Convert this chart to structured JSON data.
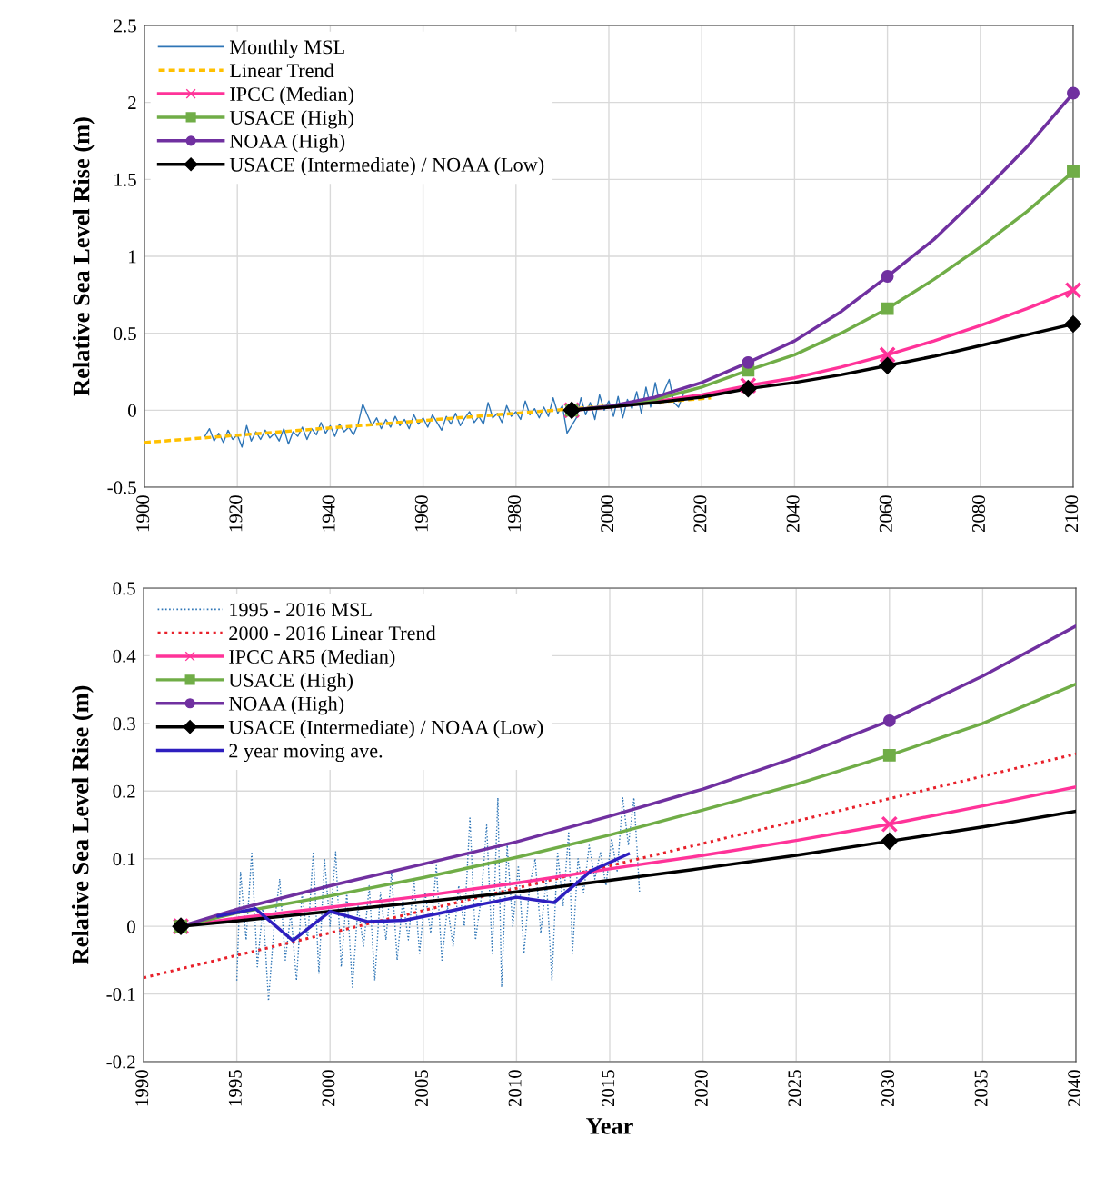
{
  "chart_data": [
    {
      "type": "line",
      "ylabel": "Relative Sea Level Rise (m)",
      "xlim": [
        1900,
        2100
      ],
      "xticks": [
        1900,
        1920,
        1940,
        1960,
        1980,
        2000,
        2020,
        2040,
        2060,
        2080,
        2100
      ],
      "ylim": [
        -0.5,
        2.5
      ],
      "yticks": [
        -0.5,
        0,
        0.5,
        1,
        1.5,
        2,
        2.5
      ],
      "grid": true,
      "legend": "top left",
      "series": [
        {
          "name": "Monthly MSL",
          "color": "#2e75b6",
          "line_style": "solid",
          "marker": "none",
          "x": [
            1913,
            1914,
            1915,
            1916,
            1917,
            1918,
            1919,
            1920,
            1921,
            1922,
            1923,
            1924,
            1925,
            1926,
            1927,
            1928,
            1929,
            1930,
            1931,
            1932,
            1933,
            1934,
            1935,
            1936,
            1937,
            1938,
            1939,
            1940,
            1941,
            1942,
            1943,
            1944,
            1945,
            1946,
            1947,
            1948,
            1949,
            1950,
            1951,
            1952,
            1953,
            1954,
            1955,
            1956,
            1957,
            1958,
            1959,
            1960,
            1961,
            1962,
            1963,
            1964,
            1965,
            1966,
            1967,
            1968,
            1969,
            1970,
            1971,
            1972,
            1973,
            1974,
            1975,
            1976,
            1977,
            1978,
            1979,
            1980,
            1981,
            1982,
            1983,
            1984,
            1985,
            1986,
            1987,
            1988,
            1989,
            1990,
            1991,
            1993,
            1994,
            1995,
            1996,
            1997,
            1998,
            1999,
            2000,
            2001,
            2002,
            2003,
            2004,
            2005,
            2006,
            2007,
            2008,
            2009,
            2010,
            2011,
            2012,
            2013,
            2014,
            2015,
            2016
          ],
          "values": [
            -0.17,
            -0.12,
            -0.2,
            -0.15,
            -0.21,
            -0.13,
            -0.19,
            -0.16,
            -0.24,
            -0.1,
            -0.2,
            -0.14,
            -0.19,
            -0.13,
            -0.18,
            -0.15,
            -0.2,
            -0.12,
            -0.22,
            -0.14,
            -0.17,
            -0.11,
            -0.19,
            -0.12,
            -0.16,
            -0.08,
            -0.15,
            -0.1,
            -0.17,
            -0.09,
            -0.14,
            -0.11,
            -0.16,
            -0.09,
            0.04,
            -0.03,
            -0.1,
            -0.05,
            -0.12,
            -0.06,
            -0.11,
            -0.04,
            -0.1,
            -0.06,
            -0.12,
            -0.03,
            -0.09,
            -0.05,
            -0.11,
            -0.03,
            -0.08,
            -0.13,
            -0.04,
            -0.09,
            -0.02,
            -0.1,
            -0.05,
            -0.01,
            -0.08,
            -0.04,
            -0.09,
            0.05,
            -0.05,
            -0.02,
            -0.08,
            0.03,
            -0.04,
            -0.01,
            -0.06,
            0.06,
            -0.03,
            0.01,
            -0.05,
            0.02,
            -0.04,
            0.08,
            -0.02,
            0.03,
            -0.15,
            -0.05,
            0.08,
            -0.03,
            0.05,
            -0.06,
            0.1,
            0.0,
            0.06,
            -0.04,
            0.09,
            -0.05,
            0.07,
            0.01,
            0.12,
            -0.02,
            0.15,
            0.02,
            0.18,
            0.04,
            0.13,
            0.2,
            0.05,
            0.02,
            0.1
          ]
        },
        {
          "name": "Linear Trend",
          "color": "#ffc000",
          "line_style": "dashed",
          "marker": "none",
          "x": [
            1900,
            2022
          ],
          "values": [
            -0.21,
            0.08
          ]
        },
        {
          "type": "line",
          "color": "#ff3399",
          "x": [
            1992,
            2000,
            2010,
            2020,
            2030,
            2040,
            2050,
            2060,
            2070,
            2080,
            2090,
            2100
          ],
          "values": [
            0,
            0.02,
            0.055,
            0.1,
            0.16,
            0.21,
            0.28,
            0.36,
            0.45,
            0.55,
            0.66,
            0.78
          ]
        },
        {
          "type": "scatter",
          "name": "IPCC (Median)",
          "color": "#ff3399",
          "line_style": "solid",
          "marker": "cross",
          "x": [
            1992,
            2030,
            2060,
            2100
          ],
          "values": [
            0,
            0.16,
            0.36,
            0.78
          ]
        },
        {
          "type": "line",
          "color": "#70ad47",
          "x": [
            1992,
            2000,
            2010,
            2020,
            2030,
            2040,
            2050,
            2060,
            2070,
            2080,
            2090,
            2100
          ],
          "values": [
            0,
            0.025,
            0.07,
            0.15,
            0.26,
            0.36,
            0.5,
            0.66,
            0.85,
            1.06,
            1.29,
            1.55
          ]
        },
        {
          "type": "scatter",
          "name": "USACE (High)",
          "color": "#70ad47",
          "line_style": "solid",
          "marker": "square",
          "x": [
            1992,
            2030,
            2060,
            2100
          ],
          "values": [
            0,
            0.26,
            0.66,
            1.55
          ]
        },
        {
          "type": "line",
          "color": "#7030a0",
          "x": [
            1992,
            2000,
            2010,
            2020,
            2030,
            2040,
            2050,
            2060,
            2070,
            2080,
            2090,
            2100
          ],
          "values": [
            0,
            0.025,
            0.085,
            0.18,
            0.31,
            0.45,
            0.64,
            0.87,
            1.11,
            1.4,
            1.71,
            2.06
          ]
        },
        {
          "type": "scatter",
          "name": "NOAA (High)",
          "color": "#7030a0",
          "line_style": "solid",
          "marker": "circle",
          "x": [
            1992,
            2030,
            2060,
            2100
          ],
          "values": [
            0,
            0.31,
            0.87,
            2.06
          ]
        },
        {
          "type": "line",
          "color": "#000000",
          "x": [
            1992,
            2000,
            2010,
            2020,
            2030,
            2040,
            2050,
            2060,
            2070,
            2080,
            2090,
            2100
          ],
          "values": [
            0,
            0.02,
            0.05,
            0.085,
            0.14,
            0.18,
            0.23,
            0.29,
            0.35,
            0.42,
            0.49,
            0.56
          ]
        },
        {
          "type": "scatter",
          "name": "USACE (Intermediate) / NOAA (Low)",
          "color": "#000000",
          "line_style": "solid",
          "marker": "diamond",
          "x": [
            1992,
            2030,
            2060,
            2100
          ],
          "values": [
            0,
            0.14,
            0.29,
            0.56
          ]
        }
      ]
    },
    {
      "type": "line",
      "xlabel": "Year",
      "ylabel": "Relative Sea Level Rise (m)",
      "xlim": [
        1990,
        2040
      ],
      "xticks": [
        1990,
        1995,
        2000,
        2005,
        2010,
        2015,
        2020,
        2025,
        2030,
        2035,
        2040
      ],
      "ylim": [
        -0.2,
        0.5
      ],
      "yticks": [
        -0.2,
        -0.1,
        0,
        0.1,
        0.2,
        0.3,
        0.4,
        0.5
      ],
      "grid": true,
      "legend": "top left",
      "series": [
        {
          "name": "1995 - 2016 MSL",
          "color": "#2e75b6",
          "line_style": "dotted",
          "marker": "none",
          "x": [
            1995.0,
            1995.2,
            1995.5,
            1995.8,
            1996.1,
            1996.4,
            1996.7,
            1997.0,
            1997.3,
            1997.6,
            1997.9,
            1998.2,
            1998.5,
            1998.8,
            1999.1,
            1999.4,
            1999.7,
            2000.0,
            2000.3,
            2000.6,
            2000.9,
            2001.2,
            2001.5,
            2001.8,
            2002.1,
            2002.4,
            2002.7,
            2003.0,
            2003.3,
            2003.6,
            2003.9,
            2004.2,
            2004.5,
            2004.8,
            2005.1,
            2005.4,
            2005.7,
            2006.0,
            2006.3,
            2006.6,
            2006.9,
            2007.2,
            2007.5,
            2007.8,
            2008.1,
            2008.4,
            2008.7,
            2009.0,
            2009.2,
            2009.5,
            2009.8,
            2010.1,
            2010.4,
            2010.7,
            2011.0,
            2011.3,
            2011.6,
            2011.9,
            2012.2,
            2012.5,
            2012.8,
            2013.0,
            2013.3,
            2013.6,
            2013.9,
            2014.2,
            2014.5,
            2014.8,
            2015.1,
            2015.4,
            2015.7,
            2016.0,
            2016.3,
            2016.6
          ],
          "values": [
            -0.08,
            0.08,
            -0.02,
            0.11,
            -0.06,
            0.03,
            -0.11,
            0.0,
            0.07,
            -0.05,
            0.02,
            -0.08,
            0.05,
            -0.02,
            0.11,
            -0.07,
            0.1,
            0.0,
            0.11,
            -0.06,
            0.05,
            -0.09,
            0.03,
            -0.03,
            0.06,
            -0.08,
            0.05,
            -0.02,
            0.08,
            -0.05,
            0.04,
            -0.02,
            0.07,
            -0.04,
            0.05,
            -0.01,
            0.09,
            -0.05,
            0.03,
            -0.03,
            0.06,
            0.0,
            0.16,
            -0.02,
            0.04,
            0.15,
            -0.04,
            0.19,
            -0.09,
            0.12,
            0.0,
            0.09,
            -0.04,
            0.06,
            0.1,
            -0.01,
            0.07,
            -0.08,
            0.11,
            0.03,
            0.14,
            -0.04,
            0.1,
            0.05,
            0.12,
            0.07,
            0.11,
            0.06,
            0.13,
            0.08,
            0.19,
            0.12,
            0.19,
            0.05
          ]
        },
        {
          "name": "2000 - 2016 Linear Trend",
          "color": "#e8202a",
          "line_style": "dotted",
          "marker": "none",
          "x": [
            1990,
            2040
          ],
          "values": [
            -0.076,
            0.255
          ]
        },
        {
          "type": "line",
          "color": "#ff3399",
          "x": [
            1992,
            1995,
            2000,
            2005,
            2010,
            2015,
            2020,
            2025,
            2030,
            2035,
            2040
          ],
          "values": [
            0,
            0.012,
            0.028,
            0.045,
            0.064,
            0.085,
            0.105,
            0.127,
            0.151,
            0.178,
            0.206
          ]
        },
        {
          "type": "scatter",
          "name": "IPCC AR5 (Median)",
          "color": "#ff3399",
          "line_style": "solid",
          "marker": "cross",
          "x": [
            1992,
            2030
          ],
          "values": [
            0,
            0.151
          ]
        },
        {
          "type": "line",
          "color": "#70ad47",
          "x": [
            1992,
            1995,
            2000,
            2005,
            2010,
            2015,
            2020,
            2025,
            2030,
            2035,
            2040
          ],
          "values": [
            0,
            0.02,
            0.045,
            0.072,
            0.102,
            0.135,
            0.172,
            0.21,
            0.253,
            0.3,
            0.358
          ]
        },
        {
          "type": "scatter",
          "name": "USACE (High)",
          "color": "#70ad47",
          "line_style": "solid",
          "marker": "square",
          "x": [
            1992,
            2030
          ],
          "values": [
            0,
            0.253
          ]
        },
        {
          "type": "line",
          "color": "#7030a0",
          "x": [
            1992,
            1995,
            2000,
            2005,
            2010,
            2015,
            2020,
            2025,
            2030,
            2035,
            2040
          ],
          "values": [
            0,
            0.025,
            0.06,
            0.092,
            0.125,
            0.163,
            0.203,
            0.25,
            0.304,
            0.37,
            0.444
          ]
        },
        {
          "type": "scatter",
          "name": "NOAA (High)",
          "color": "#7030a0",
          "line_style": "solid",
          "marker": "circle",
          "x": [
            1992,
            2030
          ],
          "values": [
            0,
            0.304
          ]
        },
        {
          "type": "line",
          "color": "#000000",
          "x": [
            1992,
            1995,
            2000,
            2005,
            2010,
            2015,
            2020,
            2025,
            2030,
            2035,
            2040
          ],
          "values": [
            0,
            0.008,
            0.022,
            0.036,
            0.051,
            0.068,
            0.086,
            0.105,
            0.126,
            0.147,
            0.17
          ]
        },
        {
          "type": "scatter",
          "name": "USACE (Intermediate) / NOAA (Low)",
          "color": "#000000",
          "line_style": "solid",
          "marker": "diamond",
          "x": [
            1992,
            2030
          ],
          "values": [
            0,
            0.126
          ]
        },
        {
          "name": "2 year moving ave.",
          "color": "#2e1fbf",
          "line_style": "solid",
          "marker": "none",
          "x": [
            1994,
            1996,
            1998,
            2000,
            2002,
            2004,
            2006,
            2008,
            2010,
            2012,
            2014,
            2016
          ],
          "values": [
            0.015,
            0.026,
            -0.021,
            0.022,
            0.007,
            0.009,
            0.02,
            0.032,
            0.043,
            0.035,
            0.082,
            0.107
          ]
        }
      ]
    }
  ]
}
